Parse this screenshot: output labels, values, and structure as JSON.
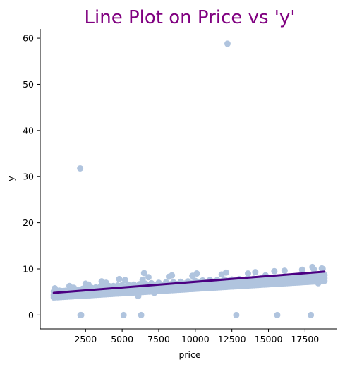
{
  "chart_data": {
    "type": "scatter",
    "title": "Line Plot on Price vs 'y'",
    "xlabel": "price",
    "ylabel": "y",
    "xlim": [
      -600,
      19700
    ],
    "ylim": [
      -3,
      62
    ],
    "xticks": [
      2500,
      5000,
      7500,
      10000,
      12500,
      15000,
      17500
    ],
    "xtick_labels": [
      "2500",
      "5000",
      "7500",
      "10000",
      "12500",
      "15000",
      "17500"
    ],
    "yticks": [
      0,
      10,
      20,
      30,
      40,
      50,
      60
    ],
    "ytick_labels": [
      "0",
      "10",
      "20",
      "30",
      "40",
      "50",
      "60"
    ],
    "grid": false,
    "colors": {
      "title": "#800080",
      "points": "#b0c4de",
      "line": "#4b0082"
    },
    "regression_line": {
      "x": [
        326,
        18823
      ],
      "y": [
        4.8,
        9.4
      ]
    },
    "points": {
      "x": [
        326,
        500,
        800,
        1000,
        1200,
        1500,
        1800,
        2000,
        2300,
        2600,
        2900,
        3200,
        3500,
        3800,
        4100,
        4400,
        4700,
        5000,
        5400,
        5800,
        6200,
        6600,
        7000,
        7500,
        8000,
        8500,
        9000,
        9500,
        10000,
        10500,
        11000,
        11500,
        12000,
        12500,
        13000,
        13500,
        14000,
        14500,
        15000,
        15500,
        16000,
        16500,
        17000,
        17500,
        18000,
        18500,
        18823,
        400,
        900,
        1400,
        2100,
        2700,
        3300,
        3900,
        4600,
        5200,
        6000,
        6800,
        7600,
        8400,
        9200,
        10100,
        11100,
        12100,
        13100,
        14100,
        15100,
        16100,
        17100,
        18100,
        18700,
        700,
        1700,
        2500,
        3600,
        4800,
        6400,
        8200,
        9800,
        11800,
        13600,
        15400,
        17300,
        18400,
        2130,
        12200,
        2200,
        2150,
        5100,
        6300,
        12800,
        15600,
        17900,
        6100,
        7200,
        18000,
        18650,
        14800,
        6500,
        10200,
        11300
      ],
      "y": [
        4.2,
        4.5,
        4.6,
        4.9,
        5.0,
        5.2,
        5.4,
        5.5,
        5.7,
        5.8,
        5.9,
        6.0,
        6.1,
        6.2,
        6.3,
        6.3,
        6.4,
        6.5,
        6.6,
        6.6,
        6.7,
        6.8,
        6.9,
        7.0,
        7.1,
        7.1,
        7.2,
        7.3,
        7.4,
        7.5,
        7.6,
        7.6,
        7.7,
        7.7,
        7.8,
        7.8,
        7.9,
        8.0,
        8.0,
        8.1,
        8.1,
        8.2,
        8.3,
        8.3,
        8.4,
        8.5,
        8.6,
        5.8,
        4.0,
        6.3,
        4.7,
        6.6,
        5.2,
        7.0,
        5.6,
        7.6,
        6.0,
        8.2,
        6.3,
        8.6,
        6.4,
        9.0,
        6.7,
        9.2,
        7.0,
        9.3,
        7.1,
        9.6,
        7.5,
        9.9,
        10.0,
        5.3,
        5.9,
        6.8,
        7.3,
        7.8,
        7.6,
        8.3,
        8.5,
        8.8,
        9.0,
        9.5,
        9.8,
        6.9,
        31.8,
        58.8,
        0.0,
        0.0,
        0.0,
        0.0,
        0.0,
        0.0,
        0.0,
        4.1,
        4.8,
        10.4,
        10.1,
        8.6,
        9.1,
        6.2,
        6.5
      ]
    }
  }
}
